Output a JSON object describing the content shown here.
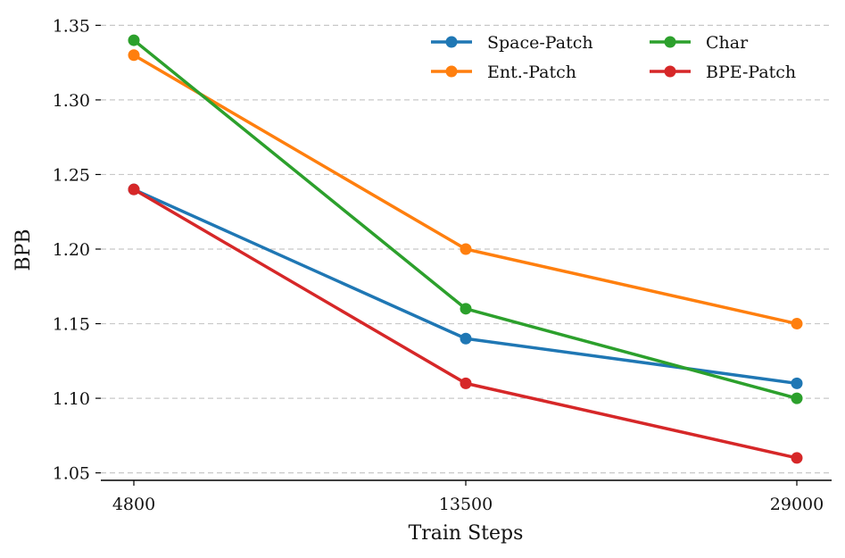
{
  "chart_data": {
    "type": "line",
    "title": "",
    "xlabel": "Train Steps",
    "ylabel": "BPB",
    "categories": [
      "4800",
      "13500",
      "29000"
    ],
    "ylim": [
      1.045,
      1.355
    ],
    "yticks": [
      "1.05",
      "1.10",
      "1.15",
      "1.20",
      "1.25",
      "1.30",
      "1.35"
    ],
    "grid": "horizontal dashed",
    "legend_position": "top-right",
    "series": [
      {
        "name": "Space-Patch",
        "color": "#1f77b4",
        "values": [
          1.24,
          1.14,
          1.11
        ]
      },
      {
        "name": "Ent.-Patch",
        "color": "#ff7f0e",
        "values": [
          1.33,
          1.2,
          1.15
        ]
      },
      {
        "name": "Char",
        "color": "#2ca02c",
        "values": [
          1.34,
          1.16,
          1.1
        ]
      },
      {
        "name": "BPE-Patch",
        "color": "#d62728",
        "values": [
          1.24,
          1.11,
          1.06
        ]
      }
    ]
  }
}
